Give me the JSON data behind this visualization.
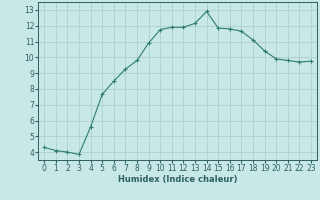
{
  "x": [
    0,
    1,
    2,
    3,
    4,
    5,
    6,
    7,
    8,
    9,
    10,
    11,
    12,
    13,
    14,
    15,
    16,
    17,
    18,
    19,
    20,
    21,
    22,
    23
  ],
  "y": [
    4.3,
    4.1,
    4.0,
    3.85,
    5.6,
    7.65,
    8.5,
    9.25,
    9.8,
    10.9,
    11.75,
    11.9,
    11.9,
    12.15,
    12.9,
    11.85,
    11.8,
    11.65,
    11.1,
    10.4,
    9.9,
    9.8,
    9.7,
    9.75
  ],
  "line_color": "#2e7d6e",
  "marker": "+",
  "bg_color": "#c8e8e8",
  "grid_color": "#aed0d0",
  "xlabel": "Humidex (Indice chaleur)",
  "xlim": [
    -0.5,
    23.5
  ],
  "ylim": [
    3.5,
    13.5
  ],
  "yticks": [
    4,
    5,
    6,
    7,
    8,
    9,
    10,
    11,
    12,
    13
  ],
  "xticks": [
    0,
    1,
    2,
    3,
    4,
    5,
    6,
    7,
    8,
    9,
    10,
    11,
    12,
    13,
    14,
    15,
    16,
    17,
    18,
    19,
    20,
    21,
    22,
    23
  ],
  "tick_color": "#2e6060",
  "label_color": "#2e6060",
  "spine_color": "#2e6060",
  "xlabel_fontsize": 6.0,
  "tick_fontsize": 5.5,
  "linewidth": 0.8,
  "markersize": 2.5,
  "markeredgewidth": 0.8
}
